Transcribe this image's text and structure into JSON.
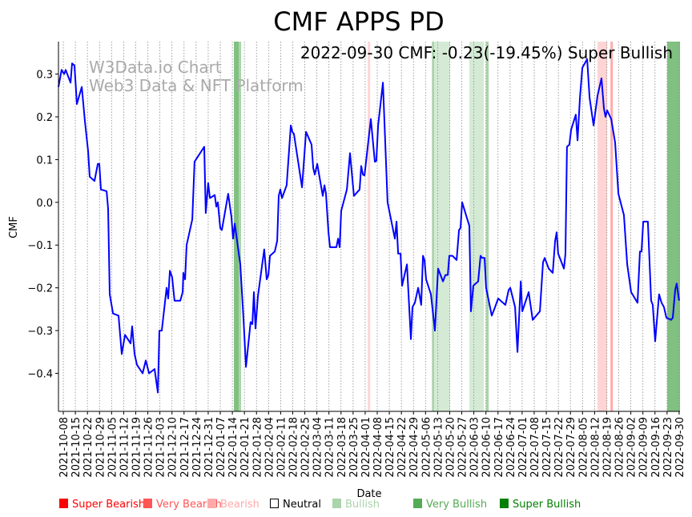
{
  "chart_data": {
    "type": "line",
    "title": "CMF APPS PD",
    "subtitle": "2022-09-30 CMF: -0.23(-19.45%) Super Bullish",
    "watermark": [
      "W3Data.io Chart",
      "Web3 Data & NFT Platform"
    ],
    "xlabel": "Date",
    "ylabel": "CMF",
    "x_unit": "days since 2021-10-08",
    "xlim": [
      -2.8,
      357.5
    ],
    "ylim": [
      -0.489,
      0.376
    ],
    "yticks": [
      0.3,
      0.2,
      0.1,
      0.0,
      -0.1,
      -0.2,
      -0.3,
      -0.4
    ],
    "ytick_labels": [
      "0.3",
      "0.2",
      "0.1",
      "0.0",
      "−0.1",
      "−0.2",
      "−0.3",
      "−0.4"
    ],
    "xtick_step_days": 7,
    "xtick_labels": [
      "2021-10-08",
      "2021-10-15",
      "2021-10-22",
      "2021-10-29",
      "2021-11-05",
      "2021-11-12",
      "2021-11-19",
      "2021-11-26",
      "2021-12-03",
      "2021-12-10",
      "2021-12-17",
      "2021-12-24",
      "2021-12-31",
      "2022-01-07",
      "2022-01-14",
      "2022-01-21",
      "2022-01-28",
      "2022-02-04",
      "2022-02-11",
      "2022-02-18",
      "2022-02-25",
      "2022-03-04",
      "2022-03-11",
      "2022-03-18",
      "2022-03-25",
      "2022-04-01",
      "2022-04-08",
      "2022-04-15",
      "2022-04-22",
      "2022-04-29",
      "2022-05-06",
      "2022-05-13",
      "2022-05-20",
      "2022-05-27",
      "2022-06-03",
      "2022-06-10",
      "2022-06-17",
      "2022-06-24",
      "2022-07-01",
      "2022-07-08",
      "2022-07-15",
      "2022-07-22",
      "2022-07-29",
      "2022-08-05",
      "2022-08-12",
      "2022-08-19",
      "2022-08-26",
      "2022-09-02",
      "2022-09-09",
      "2022-09-16",
      "2022-09-23",
      "2022-09-30"
    ],
    "grid": "vertical dotted",
    "series": [
      {
        "name": "CMF",
        "color": "#0000ff",
        "x": [
          -2.8,
          -1,
          0.5,
          1.4,
          4.2,
          5.1,
          6.5,
          7.9,
          10.7,
          12.5,
          14.4,
          15.3,
          18.1,
          20,
          20.9,
          21.8,
          25.1,
          26,
          26.9,
          28.8,
          32,
          33.9,
          35.8,
          39,
          39.9,
          41.3,
          42.7,
          46,
          47.8,
          49.7,
          52.9,
          54.8,
          55.7,
          57.1,
          59.9,
          60.8,
          61.8,
          63.1,
          64.5,
          67.8,
          69.2,
          69.6,
          70.6,
          71.5,
          74.8,
          76.1,
          81.7,
          82.6,
          84,
          85,
          87.8,
          88.7,
          89.6,
          91,
          91.9,
          95.6,
          97.5,
          98.4,
          99.4,
          102.6,
          104.5,
          105.9,
          108.6,
          109.6,
          110.5,
          111.4,
          112.8,
          116.5,
          117.9,
          118.9,
          119.8,
          122.6,
          124,
          124.9,
          125.8,
          126.8,
          129.5,
          131.9,
          132.8,
          133.7,
          138.4,
          140.7,
          143.9,
          144.9,
          145.8,
          147.2,
          150.4,
          151.4,
          152.3,
          153.7,
          154.6,
          158.3,
          159.3,
          160.2,
          161.1,
          164.4,
          166.2,
          168.5,
          171.8,
          172.7,
          173.7,
          174.6,
          178.3,
          180.6,
          181.5,
          182.5,
          185.3,
          188,
          192.2,
          193.2,
          194.1,
          195.5,
          196.4,
          199.2,
          201.5,
          202.4,
          203.8,
          205.7,
          207.5,
          208.5,
          209.4,
          210.3,
          213.1,
          215.4,
          217.3,
          220.1,
          221.5,
          222.9,
          223.8,
          225.6,
          228,
          229.4,
          230.3,
          231.2,
          235.4,
          236.3,
          237.7,
          240.5,
          241.9,
          242.8,
          244.2,
          245.1,
          248.4,
          250.3,
          252.1,
          256.3,
          258.2,
          259.1,
          261.9,
          263.3,
          265.2,
          266.1,
          269.8,
          272.1,
          276.3,
          278.1,
          279.1,
          281.4,
          283.7,
          285.1,
          286,
          286.9,
          290.2,
          291.1,
          292,
          293.4,
          294.4,
          297.1,
          298.1,
          299.5,
          300.9,
          303.7,
          305.1,
          307.4,
          309.7,
          312,
          313.4,
          314.3,
          315.3,
          317.6,
          319.9,
          321.8,
          325,
          326.9,
          329.2,
          332.9,
          334.3,
          335.2,
          336.2,
          338.9,
          340.8,
          341.7,
          343.1,
          345.4,
          346.8,
          348.2,
          349.6,
          352.4,
          353.3,
          354.7,
          355.6,
          357
        ],
        "y": [
          0.27,
          0.31,
          0.3,
          0.31,
          0.28,
          0.325,
          0.32,
          0.23,
          0.27,
          0.19,
          0.12,
          0.06,
          0.05,
          0.09,
          0.09,
          0.03,
          0.026,
          -0.015,
          -0.215,
          -0.26,
          -0.265,
          -0.355,
          -0.31,
          -0.33,
          -0.29,
          -0.355,
          -0.38,
          -0.4,
          -0.37,
          -0.4,
          -0.39,
          -0.445,
          -0.3,
          -0.3,
          -0.2,
          -0.225,
          -0.16,
          -0.175,
          -0.23,
          -0.23,
          -0.21,
          -0.165,
          -0.18,
          -0.1,
          -0.04,
          0.095,
          0.13,
          -0.025,
          0.045,
          0.01,
          0.017,
          -0.01,
          0.0,
          -0.06,
          -0.065,
          0.02,
          -0.035,
          -0.085,
          -0.05,
          -0.145,
          -0.275,
          -0.385,
          -0.28,
          -0.285,
          -0.21,
          -0.295,
          -0.22,
          -0.11,
          -0.18,
          -0.17,
          -0.125,
          -0.115,
          -0.09,
          0.015,
          0.03,
          0.01,
          0.04,
          0.18,
          0.165,
          0.16,
          0.035,
          0.165,
          0.135,
          0.08,
          0.065,
          0.09,
          0.015,
          0.04,
          0.02,
          -0.07,
          -0.105,
          -0.105,
          -0.085,
          -0.105,
          -0.02,
          0.03,
          0.115,
          0.015,
          0.03,
          0.085,
          0.065,
          0.063,
          0.195,
          0.095,
          0.097,
          0.18,
          0.28,
          0.0,
          -0.085,
          -0.045,
          -0.12,
          -0.12,
          -0.195,
          -0.145,
          -0.32,
          -0.245,
          -0.235,
          -0.2,
          -0.24,
          -0.125,
          -0.135,
          -0.18,
          -0.215,
          -0.3,
          -0.155,
          -0.185,
          -0.17,
          -0.17,
          -0.125,
          -0.125,
          -0.135,
          -0.065,
          -0.06,
          0.0,
          -0.055,
          -0.255,
          -0.195,
          -0.185,
          -0.125,
          -0.13,
          -0.13,
          -0.2,
          -0.265,
          -0.245,
          -0.225,
          -0.24,
          -0.205,
          -0.2,
          -0.245,
          -0.35,
          -0.185,
          -0.255,
          -0.21,
          -0.275,
          -0.255,
          -0.14,
          -0.13,
          -0.155,
          -0.165,
          -0.09,
          -0.07,
          -0.12,
          -0.155,
          -0.12,
          0.13,
          0.135,
          0.17,
          0.205,
          0.145,
          0.245,
          0.315,
          0.335,
          0.245,
          0.18,
          0.25,
          0.29,
          0.22,
          0.2,
          0.215,
          0.195,
          0.14,
          0.02,
          -0.03,
          -0.145,
          -0.21,
          -0.235,
          -0.115,
          -0.115,
          -0.045,
          -0.045,
          -0.23,
          -0.24,
          -0.325,
          -0.215,
          -0.235,
          -0.245,
          -0.27,
          -0.275,
          -0.27,
          -0.205,
          -0.19,
          -0.23
        ]
      }
    ],
    "signal_bands": [
      {
        "signal": "Super Bullish",
        "start": 98.9,
        "end": 101.7
      },
      {
        "signal": "Very Bullish",
        "start": 101.7,
        "end": 103.1
      },
      {
        "signal": "Bearish",
        "start": 176.5,
        "end": 177.9
      },
      {
        "signal": "Very Bullish",
        "start": 213.7,
        "end": 215.0
      },
      {
        "signal": "Bullish",
        "start": 215.0,
        "end": 224.2
      },
      {
        "signal": "Bullish",
        "start": 235.4,
        "end": 243.8
      },
      {
        "signal": "Very Bullish",
        "start": 245.0,
        "end": 246.6
      },
      {
        "signal": "Bearish",
        "start": 309.7,
        "end": 315.3
      },
      {
        "signal": "Very Bearish",
        "start": 317.2,
        "end": 318.6
      },
      {
        "signal": "Super Bullish",
        "start": 350.1,
        "end": 357.5
      }
    ],
    "legend": {
      "placement": "bottom",
      "items": [
        {
          "label": "Super Bearish",
          "color": "#ff0000",
          "band": "#ff0000"
        },
        {
          "label": "Very Bearish",
          "color": "#ff5555",
          "band": "#ffaaaa"
        },
        {
          "label": "Bearish",
          "color": "#ffaaaa",
          "band": "#ffd4d4"
        },
        {
          "label": "Neutral",
          "color": "#000000",
          "band": "none"
        },
        {
          "label": "Bullish",
          "color": "#aad4aa",
          "band": "#d4ead4"
        },
        {
          "label": "Very Bullish",
          "color": "#55aa55",
          "band": "#aad4aa"
        },
        {
          "label": "Super Bullish",
          "color": "#008000",
          "band": "#80c080"
        }
      ]
    }
  }
}
